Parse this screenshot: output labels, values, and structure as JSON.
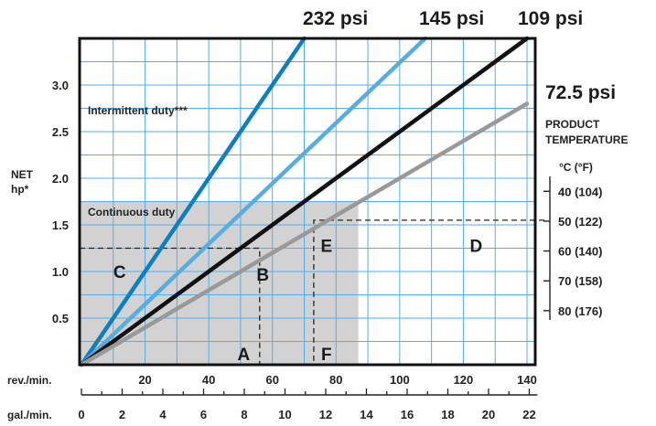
{
  "chart_data": {
    "type": "line",
    "colors": {
      "series_232": "#0b7fc0",
      "series_145": "#58ade0",
      "series_109": "#111111",
      "series_72": "#999999",
      "grid": "#55aee8",
      "continuous_region": "#d2d2d2"
    },
    "x_rev": {
      "label": "rev./min.",
      "ticks": [
        20,
        40,
        60,
        80,
        100,
        120,
        140
      ],
      "range": [
        0,
        140
      ]
    },
    "x_gal": {
      "label": "gal./min.",
      "ticks": [
        0,
        2,
        4,
        6,
        8,
        10,
        12,
        14,
        16,
        18,
        20,
        22
      ]
    },
    "y": {
      "label_line1": "NET",
      "label_line2": "hp*",
      "ticks": [
        0.5,
        1.0,
        1.5,
        2.0,
        2.5,
        3.0
      ],
      "labels": [
        "0.5",
        "1.0",
        "1.5",
        "2.0",
        "2.5",
        "3.0"
      ],
      "range": [
        0,
        3.5
      ]
    },
    "series": [
      {
        "name": "232 psi",
        "x": [
          0,
          70
        ],
        "y": [
          0,
          3.5
        ]
      },
      {
        "name": "145 psi",
        "x": [
          0,
          108
        ],
        "y": [
          0,
          3.5
        ]
      },
      {
        "name": "109 psi",
        "x": [
          0,
          140
        ],
        "y": [
          0,
          3.5
        ]
      },
      {
        "name": "72.5 psi",
        "x": [
          0,
          140
        ],
        "y": [
          0,
          2.8
        ]
      }
    ],
    "regions": {
      "intermittent": "Intermittent duty***",
      "continuous": "Continuous duty",
      "continuous_x_max": 87,
      "continuous_y_max": 1.75
    },
    "temperature": {
      "title_line1": "PRODUCT",
      "title_line2": "TEMPERATURE",
      "units": "°C  (°F)",
      "ticks": [
        {
          "label": "40 (104)",
          "y": 1.86
        },
        {
          "label": "50 (122)",
          "y": 1.54
        },
        {
          "label": "60 (140)",
          "y": 1.22
        },
        {
          "label": "70 (158)",
          "y": 0.9
        },
        {
          "label": "80 (176)",
          "y": 0.58
        }
      ]
    },
    "example": {
      "C_y": 1.25,
      "B_x": 56,
      "E_y": 1.55,
      "F_x": 73,
      "points": [
        {
          "label": "A",
          "x": 51,
          "y": 0.12
        },
        {
          "label": "B",
          "x": 57,
          "y": 0.97
        },
        {
          "label": "C",
          "x": 12,
          "y": 1.0
        },
        {
          "label": "D",
          "x": 124,
          "y": 1.28
        },
        {
          "label": "E",
          "x": 77,
          "y": 1.28
        },
        {
          "label": "F",
          "x": 77,
          "y": 0.12
        }
      ]
    }
  }
}
